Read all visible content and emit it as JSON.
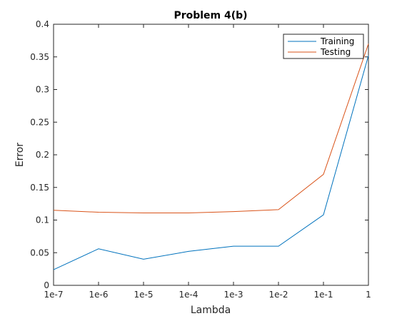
{
  "chart_data": {
    "type": "line",
    "title": "Problem 4(b)",
    "xlabel": "Lambda",
    "ylabel": "Error",
    "categories": [
      "1e-7",
      "1e-6",
      "1e-5",
      "1e-4",
      "1e-3",
      "1e-2",
      "1e-1",
      "1"
    ],
    "x_scale": "log",
    "ylim": [
      0,
      0.4
    ],
    "yticks": [
      0,
      0.05,
      0.1,
      0.15,
      0.2,
      0.25,
      0.3,
      0.35,
      0.4
    ],
    "ytick_labels": [
      "0",
      "0.05",
      "0.1",
      "0.15",
      "0.2",
      "0.25",
      "0.3",
      "0.35",
      "0.4"
    ],
    "grid": false,
    "legend_position": "top-right",
    "series": [
      {
        "name": "Training",
        "color": "#0072BD",
        "values": [
          0.024,
          0.056,
          0.04,
          0.052,
          0.06,
          0.06,
          0.108,
          0.352
        ]
      },
      {
        "name": "Testing",
        "color": "#D95319",
        "values": [
          0.115,
          0.112,
          0.111,
          0.111,
          0.113,
          0.116,
          0.17,
          0.37
        ]
      }
    ]
  }
}
